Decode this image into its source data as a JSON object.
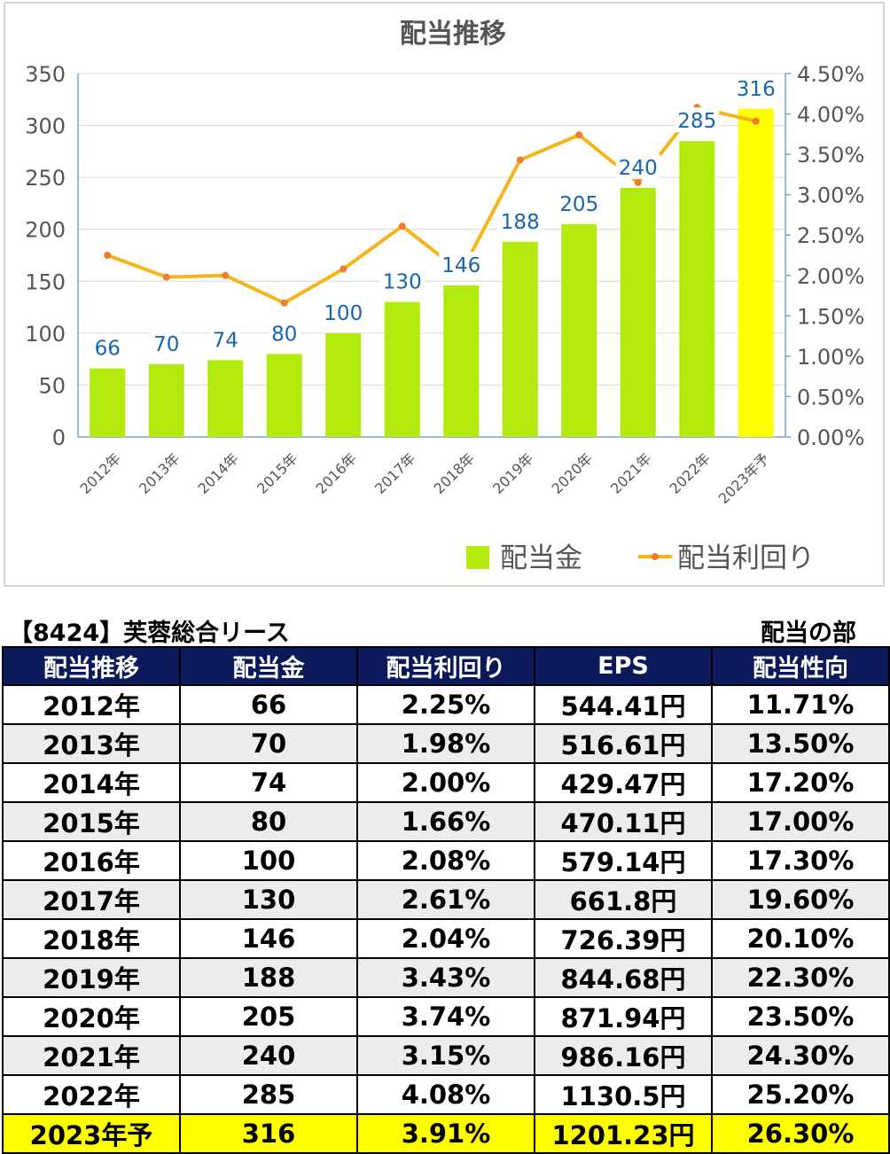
{
  "chart_data": {
    "type": "bar+line",
    "title": "配当推移",
    "categories": [
      "2012年",
      "2013年",
      "2014年",
      "2015年",
      "2016年",
      "2017年",
      "2018年",
      "2019年",
      "2020年",
      "2021年",
      "2022年",
      "2023年予"
    ],
    "series": [
      {
        "name": "配当金",
        "type": "bar",
        "axis": "left",
        "values": [
          66,
          70,
          74,
          80,
          100,
          130,
          146,
          188,
          205,
          240,
          285,
          316
        ]
      },
      {
        "name": "配当利回り",
        "type": "line",
        "axis": "right",
        "values": [
          2.25,
          1.98,
          2.0,
          1.66,
          2.08,
          2.61,
          2.04,
          3.43,
          3.74,
          3.15,
          4.08,
          3.91
        ]
      }
    ],
    "y_left": {
      "min": 0,
      "max": 350,
      "ticks": [
        "0",
        "50",
        "100",
        "150",
        "200",
        "250",
        "300",
        "350"
      ]
    },
    "y_right": {
      "min": 0,
      "max": 4.5,
      "ticks": [
        "0.00%",
        "0.50%",
        "1.00%",
        "1.50%",
        "2.00%",
        "2.50%",
        "3.00%",
        "3.50%",
        "4.00%",
        "4.50%"
      ]
    },
    "grid": true,
    "legend_position": "bottom-right",
    "colors": {
      "bar": "#b3ea0e",
      "bar_forecast": "#ffff00",
      "line": "#f5b41a",
      "marker": "#ee7d31",
      "data_label": "#1565b0"
    }
  },
  "table": {
    "company": "【8424】芙蓉総合リース",
    "section": "配当の部",
    "headers": [
      "配当推移",
      "配当金",
      "配当利回り",
      "EPS",
      "配当性向"
    ],
    "rows": [
      [
        "2012年",
        "66",
        "2.25%",
        "544.41円",
        "11.71%"
      ],
      [
        "2013年",
        "70",
        "1.98%",
        "516.61円",
        "13.50%"
      ],
      [
        "2014年",
        "74",
        "2.00%",
        "429.47円",
        "17.20%"
      ],
      [
        "2015年",
        "80",
        "1.66%",
        "470.11円",
        "17.00%"
      ],
      [
        "2016年",
        "100",
        "2.08%",
        "579.14円",
        "17.30%"
      ],
      [
        "2017年",
        "130",
        "2.61%",
        "661.8円",
        "19.60%"
      ],
      [
        "2018年",
        "146",
        "2.04%",
        "726.39円",
        "20.10%"
      ],
      [
        "2019年",
        "188",
        "3.43%",
        "844.68円",
        "22.30%"
      ],
      [
        "2020年",
        "205",
        "3.74%",
        "871.94円",
        "23.50%"
      ],
      [
        "2021年",
        "240",
        "3.15%",
        "986.16円",
        "24.30%"
      ],
      [
        "2022年",
        "285",
        "4.08%",
        "1130.5円",
        "25.20%"
      ],
      [
        "2023年予",
        "316",
        "3.91%",
        "1201.23円",
        "26.30%"
      ]
    ]
  }
}
